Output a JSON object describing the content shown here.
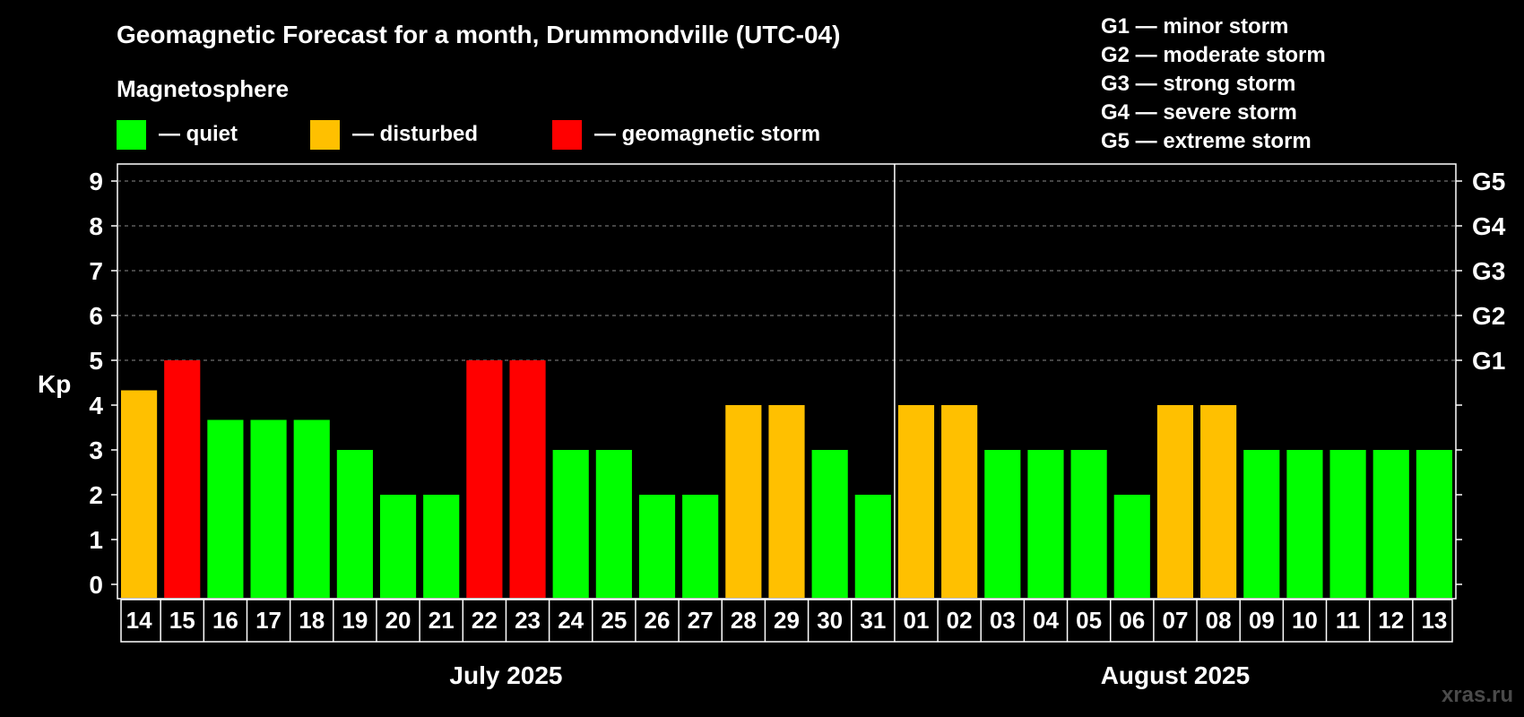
{
  "chart_data": {
    "type": "bar",
    "title": "Geomagnetic Forecast for a month, Drummondville (UTC-04)",
    "legend_title": "Magnetosphere",
    "legend": [
      {
        "key": "quiet",
        "label": "— quiet",
        "color": "#00ff00"
      },
      {
        "key": "disturbed",
        "label": "— disturbed",
        "color": "#ffc000"
      },
      {
        "key": "storm",
        "label": "— geomagnetic storm",
        "color": "#ff0000"
      }
    ],
    "g_scale_legend": [
      "G1 — minor storm",
      "G2 — moderate storm",
      "G3 — strong storm",
      "G4 — severe storm",
      "G5 — extreme storm"
    ],
    "ylabel": "Kp",
    "ylim": [
      0,
      9
    ],
    "yticks": [
      "0",
      "1",
      "2",
      "3",
      "4",
      "5",
      "6",
      "7",
      "8",
      "9"
    ],
    "right_ticks": [
      {
        "kp": 5,
        "label": "G1"
      },
      {
        "kp": 6,
        "label": "G2"
      },
      {
        "kp": 7,
        "label": "G3"
      },
      {
        "kp": 8,
        "label": "G4"
      },
      {
        "kp": 9,
        "label": "G5"
      }
    ],
    "grid": "dashed horizontal at Kp 5–9",
    "months": [
      {
        "label": "July 2025",
        "days": 18
      },
      {
        "label": "August 2025",
        "days": 13
      }
    ],
    "categories": [
      "14",
      "15",
      "16",
      "17",
      "18",
      "19",
      "20",
      "21",
      "22",
      "23",
      "24",
      "25",
      "26",
      "27",
      "28",
      "29",
      "30",
      "31",
      "01",
      "02",
      "03",
      "04",
      "05",
      "06",
      "07",
      "08",
      "09",
      "10",
      "11",
      "12",
      "13"
    ],
    "values": [
      4.33,
      5,
      3.67,
      3.67,
      3.67,
      3,
      2,
      2,
      5,
      5,
      3,
      3,
      2,
      2,
      4,
      4,
      3,
      2,
      4,
      4,
      3,
      3,
      3,
      2,
      4,
      4,
      3,
      3,
      3,
      3,
      3
    ],
    "status": [
      "disturbed",
      "storm",
      "quiet",
      "quiet",
      "quiet",
      "quiet",
      "quiet",
      "quiet",
      "storm",
      "storm",
      "quiet",
      "quiet",
      "quiet",
      "quiet",
      "disturbed",
      "disturbed",
      "quiet",
      "quiet",
      "disturbed",
      "disturbed",
      "quiet",
      "quiet",
      "quiet",
      "quiet",
      "disturbed",
      "disturbed",
      "quiet",
      "quiet",
      "quiet",
      "quiet",
      "quiet"
    ]
  },
  "watermark": "xras.ru"
}
